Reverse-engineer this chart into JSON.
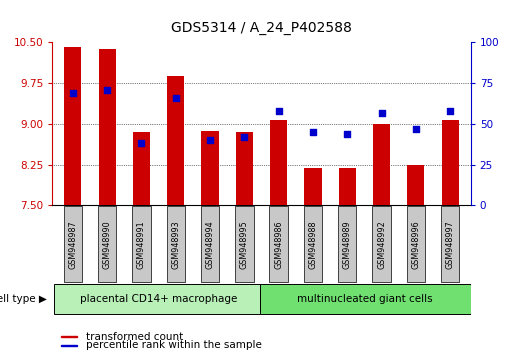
{
  "title": "GDS5314 / A_24_P402588",
  "samples": [
    "GSM948987",
    "GSM948990",
    "GSM948991",
    "GSM948993",
    "GSM948994",
    "GSM948995",
    "GSM948986",
    "GSM948988",
    "GSM948989",
    "GSM948992",
    "GSM948996",
    "GSM948997"
  ],
  "transformed_count": [
    10.42,
    10.38,
    8.85,
    9.88,
    8.87,
    8.85,
    9.07,
    8.18,
    8.18,
    9.0,
    8.25,
    9.07
  ],
  "percentile_rank": [
    69,
    71,
    38,
    66,
    40,
    42,
    58,
    45,
    44,
    57,
    47,
    58
  ],
  "n_group1": 6,
  "n_group2": 6,
  "group1_label": "placental CD14+ macrophage",
  "group2_label": "multinucleated giant cells",
  "ylim_left": [
    7.5,
    10.5
  ],
  "ylim_right": [
    0,
    100
  ],
  "yticks_left": [
    7.5,
    8.25,
    9.0,
    9.75,
    10.5
  ],
  "yticks_right": [
    0,
    25,
    50,
    75,
    100
  ],
  "bar_color": "#cc0000",
  "dot_color": "#0000cc",
  "bar_bottom": 7.5,
  "legend_bar_label": "transformed count",
  "legend_dot_label": "percentile rank within the sample",
  "left_tick_color": "#cc0000",
  "right_tick_color": "#0000cc",
  "group1_color": "#b8f0b8",
  "group2_color": "#70e070",
  "sample_bg_color": "#c8c8c8",
  "title_fontsize": 10,
  "tick_fontsize": 7.5,
  "bar_width": 0.5
}
